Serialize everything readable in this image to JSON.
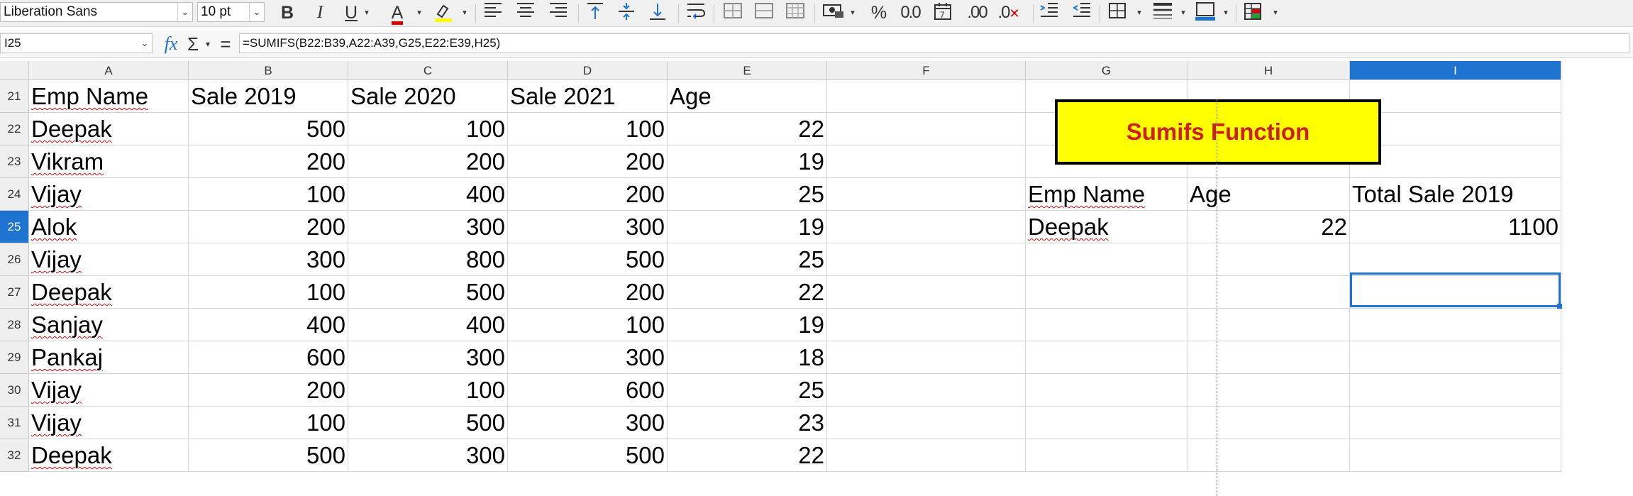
{
  "toolbar": {
    "font_name": "Liberation Sans",
    "font_size": "10 pt",
    "icons": [
      "bold-icon",
      "italic-icon",
      "underline-icon",
      "font-color-icon",
      "highlight-icon",
      "align-left-icon",
      "align-center-icon",
      "align-right-icon",
      "align-top-icon",
      "align-middle-icon",
      "align-bottom-icon",
      "wrap-text-icon",
      "merge-cells-icon",
      "merge-center-icon",
      "unmerge-icon",
      "currency-format-icon",
      "percent-format-icon",
      "number-format-icon",
      "date-format-icon",
      "add-decimal-icon",
      "delete-decimal-icon",
      "increase-indent-icon",
      "decrease-indent-icon",
      "borders-icon",
      "border-style-icon",
      "border-color-icon",
      "conditional-format-icon"
    ],
    "colors": {
      "font_color": "#d40000",
      "highlight_color": "#ffff00",
      "border_color": "#1e73d0"
    }
  },
  "formula_bar": {
    "name_box": "I25",
    "function_wizard": "fx",
    "sum_symbol": "Σ",
    "equals_symbol": "=",
    "formula": "=SUMIFS(B22:B39,A22:A39,G25,E22:E39,H25)"
  },
  "columns": [
    "A",
    "B",
    "C",
    "D",
    "E",
    "F",
    "G",
    "H",
    "I"
  ],
  "selected_column": "I",
  "rows": [
    "21",
    "22",
    "23",
    "24",
    "25",
    "26",
    "27",
    "28",
    "29",
    "30",
    "31",
    "32"
  ],
  "selected_row": "25",
  "table": {
    "headers": [
      "Emp Name",
      "Sale 2019",
      "Sale 2020",
      "Sale 2021",
      "Age"
    ],
    "records": [
      [
        "Deepak",
        "500",
        "100",
        "100",
        "22"
      ],
      [
        "Vikram",
        "200",
        "200",
        "200",
        "19"
      ],
      [
        "Vijay",
        "100",
        "400",
        "200",
        "25"
      ],
      [
        "Alok",
        "200",
        "300",
        "300",
        "19"
      ],
      [
        "Vijay",
        "300",
        "800",
        "500",
        "25"
      ],
      [
        "Deepak",
        "100",
        "500",
        "200",
        "22"
      ],
      [
        "Sanjay",
        "400",
        "400",
        "100",
        "19"
      ],
      [
        "Pankaj",
        "600",
        "300",
        "300",
        "18"
      ],
      [
        "Vijay",
        "200",
        "100",
        "600",
        "25"
      ],
      [
        "Vijay",
        "100",
        "500",
        "300",
        "23"
      ],
      [
        "Deepak",
        "500",
        "300",
        "500",
        "22"
      ]
    ]
  },
  "sumifs_panel": {
    "title": "Sumifs Function",
    "title_colors": {
      "fill": "#ffff00",
      "text": "#cc1f1f"
    },
    "labels": [
      "Emp Name",
      "Age",
      "Total Sale 2019"
    ],
    "emp_name": "Deepak",
    "age": "22",
    "total": "1100"
  }
}
